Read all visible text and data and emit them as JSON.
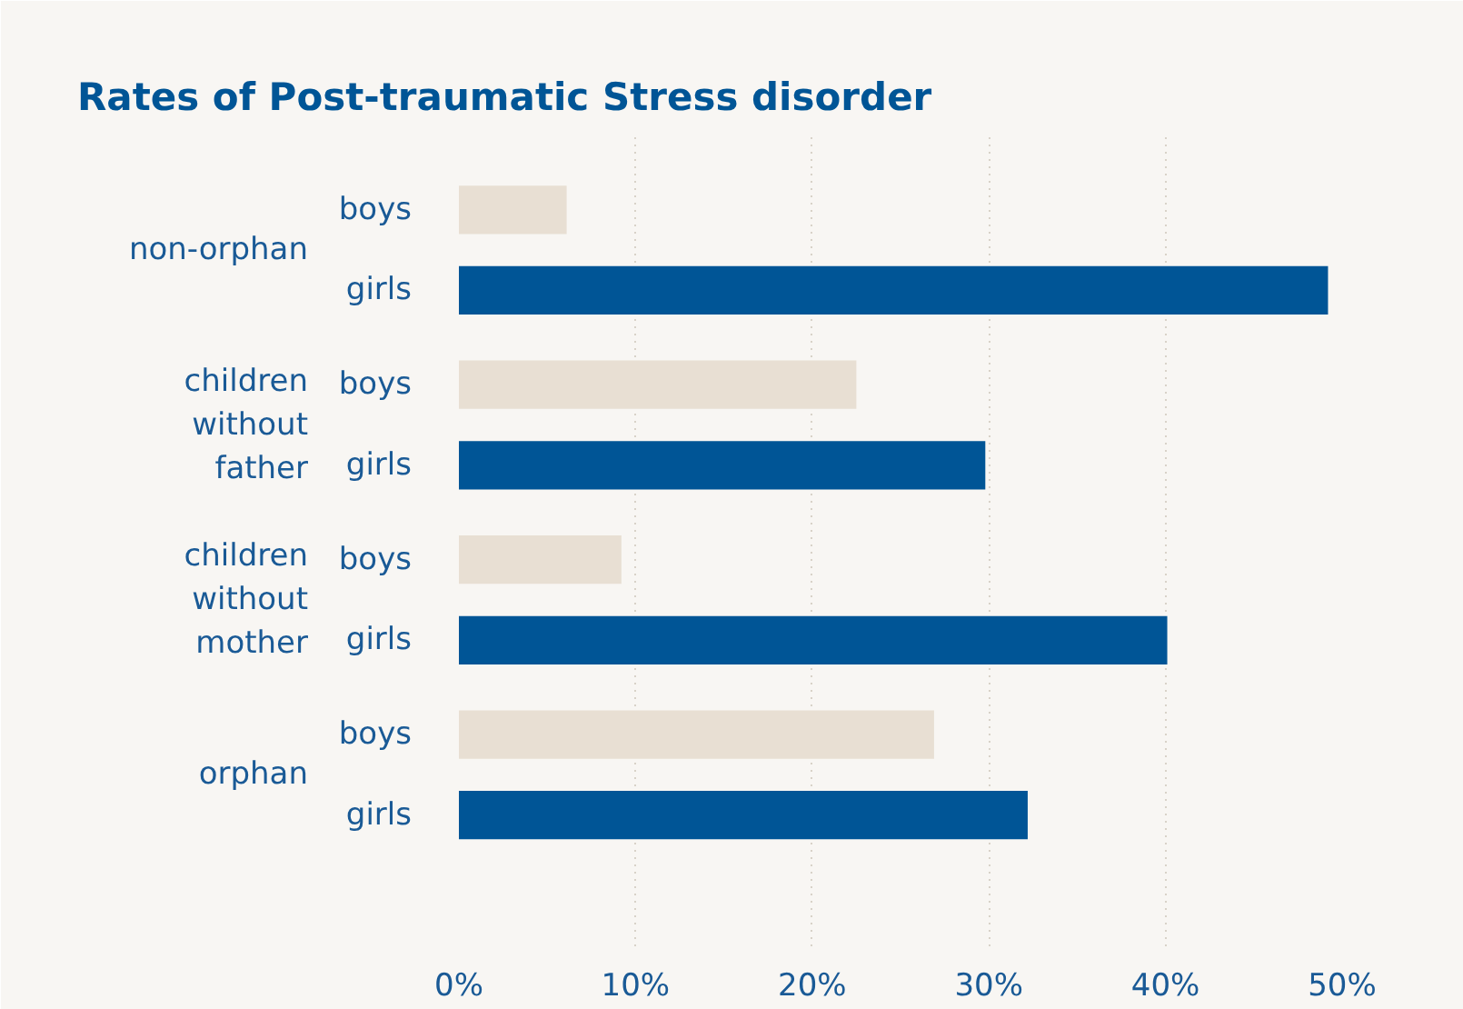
{
  "chart_data": {
    "type": "bar",
    "orientation": "horizontal",
    "title": "Rates of Post-traumatic Stress disorder",
    "categories": [
      "non-orphan",
      "children\nwithout\nfather",
      "children\nwithout\nmother",
      "orphan"
    ],
    "series": [
      {
        "name": "boys",
        "color": "#e8dfd3",
        "values": [
          6.1,
          22.5,
          9.2,
          26.9
        ]
      },
      {
        "name": "girls",
        "color": "#005596",
        "values": [
          49.2,
          29.8,
          40.1,
          32.2
        ]
      }
    ],
    "xlim": [
      0,
      50
    ],
    "xticks": [
      {
        "value": 0,
        "label": "0%"
      },
      {
        "value": 10,
        "label": "10%"
      },
      {
        "value": 20,
        "label": "20%"
      },
      {
        "value": 30,
        "label": "30%"
      },
      {
        "value": 40,
        "label": "40%"
      },
      {
        "value": 50,
        "label": "50%"
      }
    ],
    "grid": "x"
  }
}
